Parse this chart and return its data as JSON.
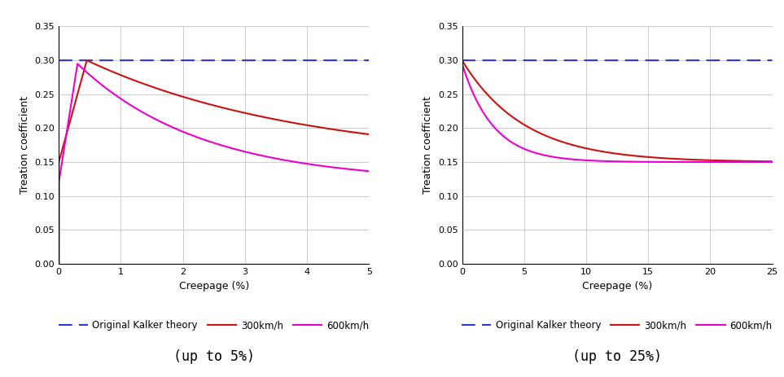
{
  "title_left": "(up to 5%)",
  "title_right": "(up to 25%)",
  "ylabel": "Treation coefficient",
  "xlabel": "Creepage (%)",
  "ylim": [
    0.0,
    0.35
  ],
  "yticks": [
    0.0,
    0.05,
    0.1,
    0.15,
    0.2,
    0.25,
    0.3,
    0.35
  ],
  "xlim_left": [
    0,
    5
  ],
  "xlim_right": [
    0,
    25
  ],
  "xticks_left": [
    0,
    1,
    2,
    3,
    4,
    5
  ],
  "xticks_right": [
    0,
    5,
    10,
    15,
    20,
    25
  ],
  "kalker_value": 0.3,
  "color_kalker": "#3333DD",
  "color_300": "#CC1111",
  "color_600": "#EE00CC",
  "legend_entries": [
    "Original Kalker theory",
    "300km/h",
    "600km/h"
  ],
  "background_color": "#FFFFFF",
  "grid_color": "#CCCCCC"
}
